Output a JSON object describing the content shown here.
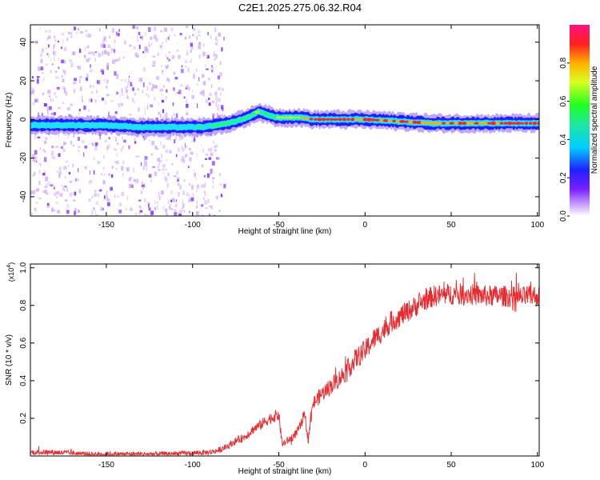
{
  "title": "C2E1.2025.275.06.32.R04",
  "colors": {
    "snr_line": "#e8292d",
    "axis": "#000000",
    "ridge_core": "#ff2020",
    "ridge_mid": "#20e0ff",
    "ridge_outer": "#2020ff",
    "noise": "#7a1fff"
  },
  "chart_data": [
    {
      "type": "heatmap",
      "name": "spectrogram",
      "xlabel": "Height of straight line (km)",
      "ylabel": "Frequency (Hz)",
      "xlim": [
        -194,
        101
      ],
      "ylim": [
        -50,
        49
      ],
      "xticks": [
        -150,
        -100,
        -50,
        0,
        50,
        100
      ],
      "xtick_labels": [
        "-150",
        "-100",
        "-50",
        "0",
        "50",
        "100"
      ],
      "yticks": [
        -40,
        -20,
        0,
        20,
        40
      ],
      "ytick_labels": [
        "-40",
        "-20",
        "0",
        "20",
        "40"
      ],
      "colorbar": {
        "label": "Normalized spectral amplitude",
        "range": [
          0.0,
          1.0
        ],
        "ticks": [
          0.0,
          0.2,
          0.4,
          0.6,
          0.8
        ],
        "tick_labels": [
          "0.0",
          "0.2",
          "0.4",
          "0.6",
          "0.8"
        ]
      },
      "ridge": {
        "description": "frequency of peak amplitude vs height",
        "x": [
          -194,
          -170,
          -150,
          -130,
          -110,
          -95,
          -85,
          -75,
          -68,
          -62,
          -58,
          -52,
          -45,
          -38,
          -30,
          -20,
          -10,
          0,
          20,
          40,
          60,
          80,
          101
        ],
        "y": [
          -3,
          -3,
          -3,
          -4,
          -4,
          -4,
          -3,
          -1,
          1,
          4,
          3,
          1,
          1,
          1,
          0,
          0,
          0,
          0,
          -1,
          -2,
          -2,
          -2,
          -2
        ],
        "amplitude": [
          0.25,
          0.25,
          0.28,
          0.3,
          0.3,
          0.45,
          0.5,
          0.55,
          0.55,
          0.6,
          0.55,
          0.6,
          0.65,
          0.75,
          0.95,
          0.95,
          0.95,
          0.9,
          0.9,
          0.85,
          0.85,
          0.9,
          0.95
        ]
      },
      "noise_region": {
        "x_range": [
          -194,
          -90
        ],
        "amplitude": 0.2
      }
    },
    {
      "type": "line",
      "name": "snr",
      "xlabel": "Height of straight line (km)",
      "ylabel": "SNR (10 * v/v)",
      "scale_label": "(x10",
      "scale_exponent": "4",
      "scale_close": ")",
      "xlim": [
        -194,
        101
      ],
      "ylim": [
        0,
        1.02
      ],
      "xticks": [
        -150,
        -100,
        -50,
        0,
        50,
        100
      ],
      "xtick_labels": [
        "-150",
        "-100",
        "-50",
        "0",
        "50",
        "100"
      ],
      "yticks": [
        0.2,
        0.4,
        0.6,
        0.8,
        1.0
      ],
      "ytick_labels": [
        "0.2",
        "0.4",
        "0.6",
        "0.8",
        "1.0"
      ],
      "series": [
        {
          "name": "SNR",
          "x": [
            -194,
            -180,
            -160,
            -140,
            -120,
            -100,
            -90,
            -85,
            -80,
            -75,
            -70,
            -65,
            -60,
            -55,
            -50,
            -48,
            -45,
            -42,
            -40,
            -38,
            -35,
            -33,
            -30,
            -25,
            -20,
            -15,
            -10,
            -5,
            0,
            5,
            10,
            15,
            20,
            25,
            30,
            35,
            40,
            50,
            60,
            70,
            80,
            90,
            95,
            100,
            101
          ],
          "y": [
            0.02,
            0.02,
            0.01,
            0.01,
            0.01,
            0.015,
            0.02,
            0.03,
            0.05,
            0.08,
            0.1,
            0.14,
            0.17,
            0.2,
            0.22,
            0.06,
            0.08,
            0.1,
            0.12,
            0.15,
            0.22,
            0.09,
            0.28,
            0.33,
            0.37,
            0.41,
            0.46,
            0.52,
            0.56,
            0.62,
            0.66,
            0.71,
            0.74,
            0.77,
            0.8,
            0.83,
            0.85,
            0.86,
            0.86,
            0.85,
            0.85,
            0.84,
            0.85,
            0.85,
            0.85
          ],
          "noise_amplitude": 0.05
        }
      ]
    }
  ]
}
